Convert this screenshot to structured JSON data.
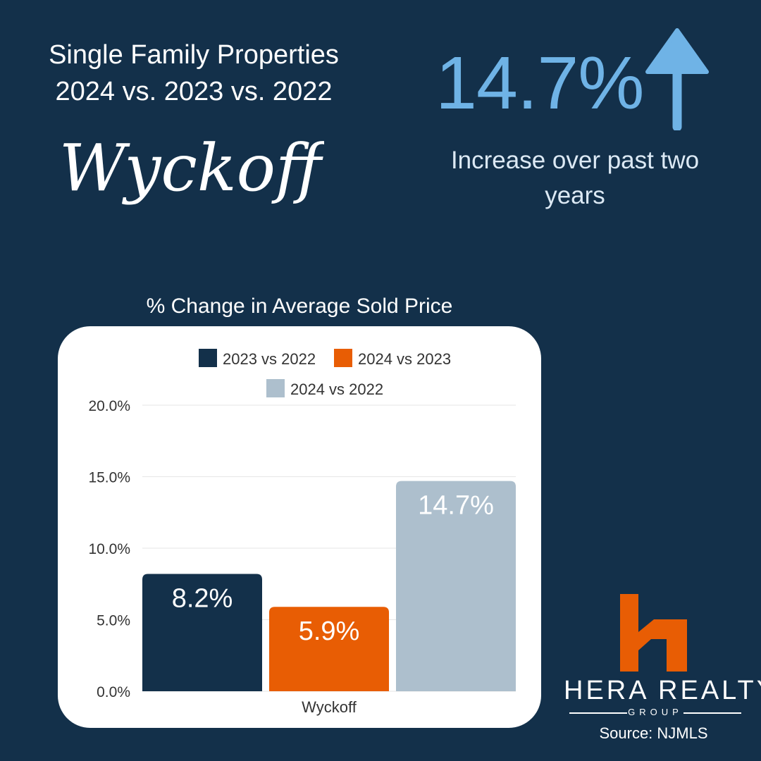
{
  "header": {
    "title_line1": "Single Family Properties",
    "title_line2": "2024 vs. 2023 vs. 2022",
    "town": "Wyckoff"
  },
  "stat": {
    "value": "14.7%",
    "description": "Increase over past two years",
    "arrow_icon": "arrow-up-icon"
  },
  "chart_data": {
    "type": "bar",
    "title": "% Change in Average Sold Price",
    "categories": [
      "Wyckoff"
    ],
    "series": [
      {
        "name": "2023 vs 2022",
        "values": [
          8.2
        ],
        "label": "8.2%",
        "color": "#13304a"
      },
      {
        "name": "2024 vs 2023",
        "values": [
          5.9
        ],
        "label": "5.9%",
        "color": "#e85d04"
      },
      {
        "name": "2024 vs 2022",
        "values": [
          14.7
        ],
        "label": "14.7%",
        "color": "#adbfcd"
      }
    ],
    "ylim": [
      0,
      20
    ],
    "yticks": [
      "0.0%",
      "5.0%",
      "10.0%",
      "15.0%",
      "20.0%"
    ],
    "xlabel": "",
    "ylabel": "",
    "grid": true,
    "legend_position": "top"
  },
  "logo": {
    "name": "HERA REALTY",
    "tagline": "GROUP",
    "mark_icon": "hera-h-logo-icon",
    "mark_color": "#e85d04"
  },
  "source": "Source: NJMLS"
}
